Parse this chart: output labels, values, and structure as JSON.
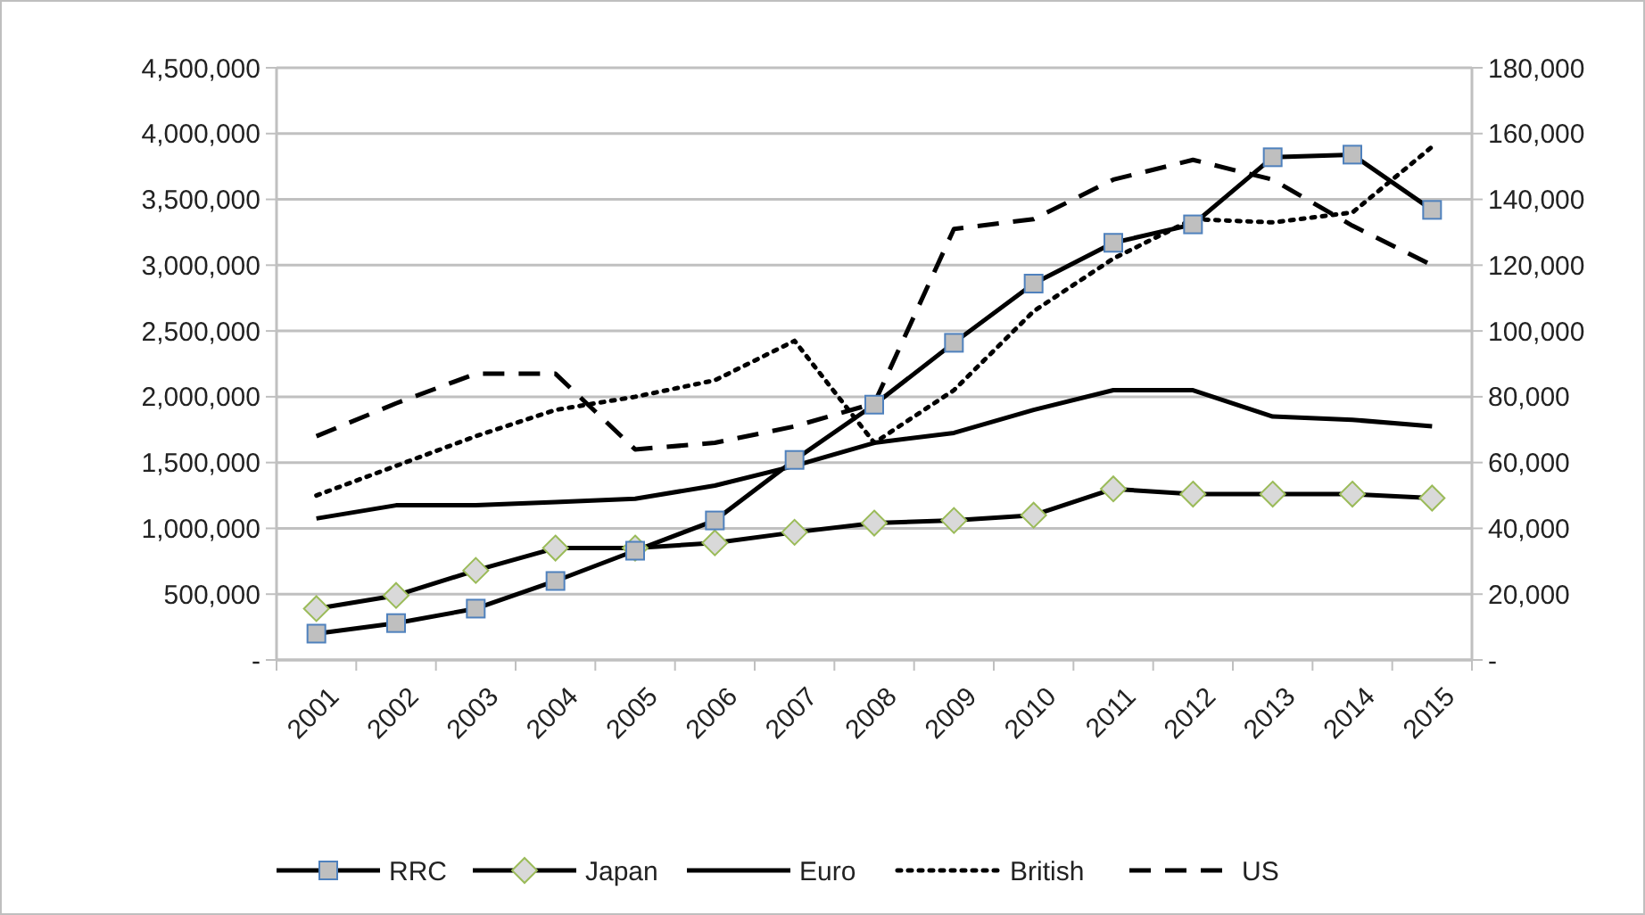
{
  "chart_data": {
    "type": "line",
    "categories": [
      "2001",
      "2002",
      "2003",
      "2004",
      "2005",
      "2006",
      "2007",
      "2008",
      "2009",
      "2010",
      "2011",
      "2012",
      "2013",
      "2014",
      "2015"
    ],
    "series": [
      {
        "name": "RRC",
        "color": "#000000",
        "marker": "square",
        "line_style": "solid",
        "values": [
          200000,
          280000,
          390000,
          600000,
          830000,
          1060000,
          1520000,
          1940000,
          2410000,
          2860000,
          3170000,
          3310000,
          3820000,
          3840000,
          3420000
        ]
      },
      {
        "name": "Japan",
        "color": "#000000",
        "marker": "diamond",
        "line_style": "solid",
        "values": [
          390000,
          490000,
          680000,
          850000,
          850000,
          890000,
          970000,
          1040000,
          1060000,
          1100000,
          1300000,
          1260000,
          1260000,
          1260000,
          1230000
        ]
      },
      {
        "name": "Euro",
        "color": "#000000",
        "marker": "none",
        "line_style": "solid",
        "axis": "y2",
        "values": [
          43000,
          47000,
          47000,
          48000,
          49000,
          53000,
          59000,
          66000,
          69000,
          76000,
          82000,
          82000,
          74000,
          73000,
          71000
        ]
      },
      {
        "name": "British",
        "color": "#000000",
        "marker": "none",
        "line_style": "dotted",
        "axis": "y2",
        "values": [
          50000,
          59000,
          68000,
          76000,
          80000,
          85000,
          97000,
          66000,
          82000,
          106000,
          122000,
          134000,
          133000,
          136000,
          156000
        ]
      },
      {
        "name": "US",
        "color": "#000000",
        "marker": "none",
        "line_style": "dashed",
        "axis": "y2",
        "values": [
          68000,
          78000,
          87000,
          87000,
          64000,
          66000,
          71000,
          78000,
          131000,
          134000,
          146000,
          152000,
          146000,
          132000,
          120000
        ]
      }
    ],
    "ylim": [
      0,
      4500000
    ],
    "yticks": [
      {
        "value": 0,
        "label": "-"
      },
      {
        "value": 500000,
        "label": "500,000"
      },
      {
        "value": 1000000,
        "label": "1,000,000"
      },
      {
        "value": 1500000,
        "label": "1,500,000"
      },
      {
        "value": 2000000,
        "label": "2,000,000"
      },
      {
        "value": 2500000,
        "label": "2,500,000"
      },
      {
        "value": 3000000,
        "label": "3,000,000"
      },
      {
        "value": 3500000,
        "label": "3,500,000"
      },
      {
        "value": 4000000,
        "label": "4,000,000"
      },
      {
        "value": 4500000,
        "label": "4,500,000"
      }
    ],
    "y2lim": [
      0,
      180000
    ],
    "y2ticks": [
      {
        "value": 0,
        "label": "-"
      },
      {
        "value": 20000,
        "label": "20,000"
      },
      {
        "value": 40000,
        "label": "40,000"
      },
      {
        "value": 60000,
        "label": "60,000"
      },
      {
        "value": 80000,
        "label": "80,000"
      },
      {
        "value": 100000,
        "label": "100,000"
      },
      {
        "value": 120000,
        "label": "120,000"
      },
      {
        "value": 140000,
        "label": "140,000"
      },
      {
        "value": 160000,
        "label": "160,000"
      },
      {
        "value": 180000,
        "label": "180,000"
      }
    ],
    "grid": "y",
    "legend": "bottom"
  }
}
